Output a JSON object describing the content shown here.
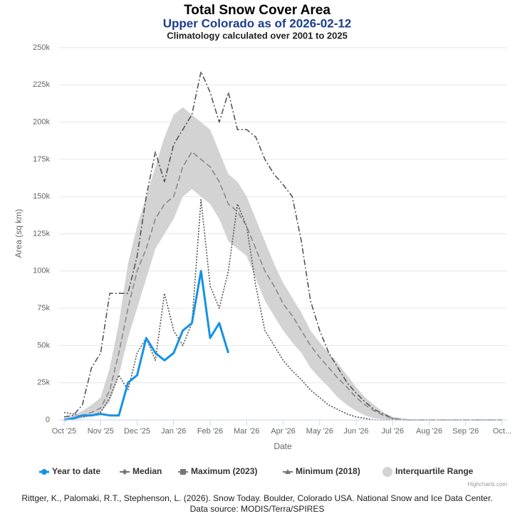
{
  "chart_data": {
    "type": "line",
    "title": "Total Snow Cover Area",
    "subtitle": "Upper Colorado as of 2026-02-12",
    "subtitle2": "Climatology calculated over 2001 to 2025",
    "x_label": "Date",
    "y_label": "Area (sq km)",
    "credits": "Highcharts.com",
    "caption": [
      "Rittger, K., Palomaki, R.T., Stephenson, L. (2026). Snow Today. Boulder, Colorado USA. National Snow and Ice Data Center.",
      "Data source: MODIS/Terra/SPIRES"
    ],
    "xlim": [
      0,
      12
    ],
    "xticks": [
      {
        "value": 0,
        "label": "Oct '25"
      },
      {
        "value": 1,
        "label": "Nov '25"
      },
      {
        "value": 2,
        "label": "Dec '25"
      },
      {
        "value": 3,
        "label": "Jan '26"
      },
      {
        "value": 4,
        "label": "Feb '26"
      },
      {
        "value": 5,
        "label": "Mar '26"
      },
      {
        "value": 6,
        "label": "Apr '26"
      },
      {
        "value": 7,
        "label": "May '26"
      },
      {
        "value": 8,
        "label": "Jun '26"
      },
      {
        "value": 9,
        "label": "Jul '26"
      },
      {
        "value": 10,
        "label": "Aug '26"
      },
      {
        "value": 11,
        "label": "Sep '26"
      },
      {
        "value": 12,
        "label": "Oct..."
      }
    ],
    "ylim": [
      0,
      250000
    ],
    "yticks": [
      0,
      {
        "value": 25000,
        "label": "25k"
      },
      {
        "value": 50000,
        "label": "50k"
      },
      {
        "value": 75000,
        "label": "75k"
      },
      {
        "value": 100000,
        "label": "100k"
      },
      {
        "value": 125000,
        "label": "125k"
      },
      {
        "value": 150000,
        "label": "150k"
      },
      {
        "value": 175000,
        "label": "175k"
      },
      {
        "value": 200000,
        "label": "200k"
      },
      {
        "value": 225000,
        "label": "225k"
      },
      {
        "value": 250000,
        "label": "250k"
      }
    ],
    "grid": true,
    "x": [
      0,
      0.25,
      0.5,
      0.75,
      1,
      1.25,
      1.5,
      1.75,
      2,
      2.25,
      2.5,
      2.75,
      3,
      3.25,
      3.5,
      3.75,
      4,
      4.25,
      4.5,
      4.75,
      5,
      5.25,
      5.5,
      5.75,
      6,
      6.25,
      6.5,
      6.75,
      7,
      7.25,
      7.5,
      7.75,
      8,
      8.25,
      8.5,
      8.75,
      9,
      9.25,
      9.5,
      9.75,
      10,
      10.25,
      10.5,
      10.75,
      11,
      11.25,
      11.5,
      11.75,
      12
    ],
    "series": [
      {
        "name": "Year to date",
        "color": "#1592e6",
        "style": "solid",
        "marker": "circle",
        "values": [
          0,
          1000,
          3000,
          3000,
          4000,
          3000,
          3000,
          25000,
          30000,
          55000,
          45000,
          40000,
          45000,
          60000,
          65000,
          100000,
          55000,
          65000,
          45000,
          null,
          null,
          null,
          null,
          null,
          null,
          null,
          null,
          null,
          null,
          null,
          null,
          null,
          null,
          null,
          null,
          null,
          null,
          null,
          null,
          null,
          null,
          null,
          null,
          null,
          null,
          null,
          null,
          null,
          null
        ]
      },
      {
        "name": "Median",
        "color": "#8a8a8a",
        "style": "dash",
        "marker": "diamond",
        "values": [
          0,
          1000,
          3000,
          5000,
          8000,
          20000,
          45000,
          75000,
          100000,
          115000,
          135000,
          145000,
          150000,
          170000,
          180000,
          175000,
          170000,
          160000,
          145000,
          140000,
          130000,
          115000,
          100000,
          90000,
          78000,
          70000,
          60000,
          50000,
          42000,
          35000,
          28000,
          22000,
          15000,
          10000,
          6000,
          3000,
          1000,
          500,
          0,
          0,
          0,
          0,
          0,
          0,
          0,
          0,
          0,
          0,
          0
        ]
      },
      {
        "name": "Maximum (2023)",
        "color": "#555555",
        "style": "dashdot",
        "marker": "square",
        "values": [
          2000,
          3000,
          10000,
          35000,
          45000,
          85000,
          85000,
          85000,
          110000,
          150000,
          180000,
          160000,
          185000,
          195000,
          205000,
          234000,
          220000,
          200000,
          220000,
          195000,
          195000,
          190000,
          175000,
          165000,
          158000,
          150000,
          120000,
          80000,
          60000,
          45000,
          35000,
          25000,
          18000,
          12000,
          7000,
          4000,
          1000,
          0,
          0,
          0,
          0,
          0,
          0,
          0,
          0,
          0,
          0,
          0,
          0
        ]
      },
      {
        "name": "Minimum (2018)",
        "color": "#555555",
        "style": "dot",
        "marker": "triangle",
        "values": [
          5000,
          4000,
          2000,
          3000,
          5000,
          15000,
          30000,
          20000,
          45000,
          55000,
          40000,
          85000,
          60000,
          50000,
          65000,
          148000,
          90000,
          75000,
          100000,
          145000,
          130000,
          90000,
          60000,
          50000,
          40000,
          33000,
          27000,
          20000,
          15000,
          10000,
          7000,
          4000,
          2000,
          1000,
          0,
          0,
          0,
          0,
          0,
          0,
          0,
          0,
          0,
          0,
          0,
          0,
          0,
          0,
          0
        ]
      },
      {
        "name": "Interquartile Range",
        "color": "#d3d3d3",
        "style": "band",
        "marker": "bigcircle",
        "low": [
          0,
          0,
          1000,
          3000,
          5000,
          12000,
          30000,
          55000,
          75000,
          95000,
          115000,
          125000,
          135000,
          150000,
          155000,
          150000,
          145000,
          135000,
          120000,
          115000,
          110000,
          95000,
          80000,
          70000,
          60000,
          52000,
          45000,
          35000,
          28000,
          22000,
          15000,
          10000,
          6000,
          3000,
          1000,
          500,
          0,
          0,
          0,
          0,
          0,
          0,
          0,
          0,
          0,
          0,
          0,
          0,
          0
        ],
        "high": [
          1000,
          3000,
          6000,
          10000,
          15000,
          35000,
          65000,
          105000,
          130000,
          150000,
          170000,
          190000,
          205000,
          210000,
          205000,
          200000,
          195000,
          180000,
          165000,
          160000,
          150000,
          135000,
          120000,
          105000,
          92000,
          82000,
          72000,
          60000,
          52000,
          45000,
          38000,
          30000,
          22000,
          15000,
          10000,
          5000,
          2000,
          1000,
          0,
          0,
          0,
          0,
          0,
          0,
          0,
          0,
          0,
          0,
          0
        ]
      }
    ]
  }
}
